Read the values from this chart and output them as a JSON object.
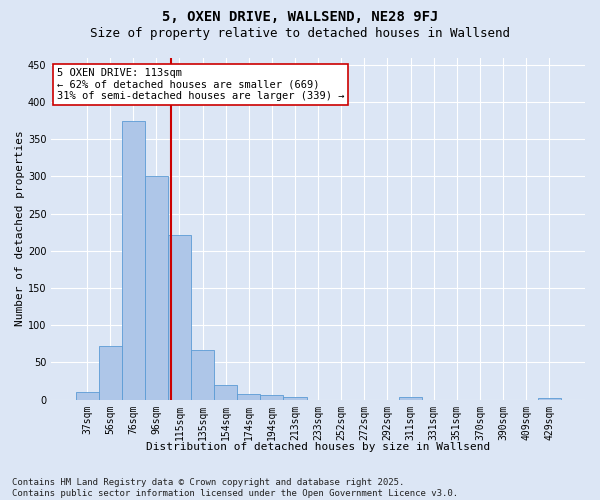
{
  "title": "5, OXEN DRIVE, WALLSEND, NE28 9FJ",
  "subtitle": "Size of property relative to detached houses in Wallsend",
  "xlabel": "Distribution of detached houses by size in Wallsend",
  "ylabel": "Number of detached properties",
  "categories": [
    "37sqm",
    "56sqm",
    "76sqm",
    "96sqm",
    "115sqm",
    "135sqm",
    "154sqm",
    "174sqm",
    "194sqm",
    "213sqm",
    "233sqm",
    "252sqm",
    "272sqm",
    "292sqm",
    "311sqm",
    "331sqm",
    "351sqm",
    "370sqm",
    "390sqm",
    "409sqm",
    "429sqm"
  ],
  "values": [
    10,
    72,
    375,
    300,
    222,
    67,
    20,
    7,
    6,
    3,
    0,
    0,
    0,
    0,
    3,
    0,
    0,
    0,
    0,
    0,
    2
  ],
  "bar_color": "#aec6e8",
  "bar_edge_color": "#5b9bd5",
  "background_color": "#dce6f5",
  "grid_color": "#ffffff",
  "vline_x": 3.65,
  "vline_color": "#cc0000",
  "annotation_text": "5 OXEN DRIVE: 113sqm\n← 62% of detached houses are smaller (669)\n31% of semi-detached houses are larger (339) →",
  "annotation_box_color": "#ffffff",
  "annotation_box_edge": "#cc0000",
  "ylim": [
    0,
    460
  ],
  "yticks": [
    0,
    50,
    100,
    150,
    200,
    250,
    300,
    350,
    400,
    450
  ],
  "footer": "Contains HM Land Registry data © Crown copyright and database right 2025.\nContains public sector information licensed under the Open Government Licence v3.0.",
  "title_fontsize": 10,
  "subtitle_fontsize": 9,
  "label_fontsize": 8,
  "tick_fontsize": 7,
  "footer_fontsize": 6.5,
  "annotation_fontsize": 7.5
}
